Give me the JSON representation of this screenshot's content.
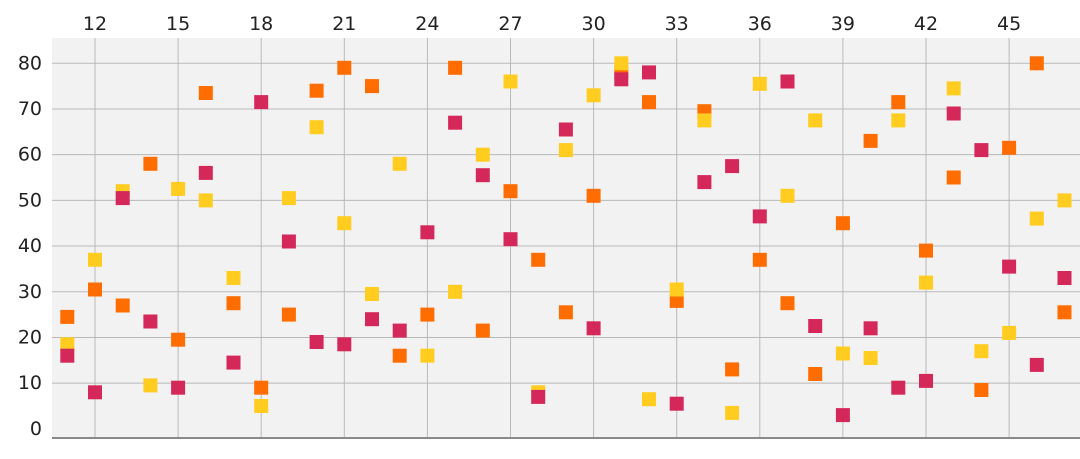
{
  "colors": {
    "plot_background": "#f2f2f2",
    "grid": "#b9b9b9",
    "axis": "#8a8a8a",
    "tick_text": "#222222"
  },
  "chart_data": {
    "type": "scatter",
    "title": "",
    "xlabel": "",
    "ylabel": "",
    "x_axis_position": "top",
    "y_axis_position": "left",
    "grid": true,
    "xlim": [
      10,
      47.5
    ],
    "ylim": [
      -2,
      88
    ],
    "xticks": [
      12,
      15,
      18,
      21,
      24,
      27,
      30,
      33,
      36,
      39,
      42,
      45
    ],
    "yticks": [
      0,
      10,
      20,
      30,
      40,
      50,
      60,
      70,
      80
    ],
    "marker": "square",
    "series": [
      {
        "color": "#ff6d00",
        "points": [
          [
            11,
            24.5
          ],
          [
            12,
            30.5
          ],
          [
            13,
            27
          ],
          [
            14,
            58
          ],
          [
            15,
            19.5
          ],
          [
            16,
            73.5
          ],
          [
            17,
            27.5
          ],
          [
            18,
            9
          ],
          [
            19,
            25
          ],
          [
            20,
            74
          ],
          [
            21,
            79
          ],
          [
            22,
            75
          ],
          [
            23,
            16
          ],
          [
            24,
            25
          ],
          [
            25,
            79
          ],
          [
            26,
            21.5
          ],
          [
            27,
            52
          ],
          [
            28,
            37
          ],
          [
            29,
            25.5
          ],
          [
            30,
            51
          ],
          [
            31,
            78
          ],
          [
            32,
            71.5
          ],
          [
            33,
            28
          ],
          [
            34,
            69.5
          ],
          [
            35,
            13
          ],
          [
            36,
            37
          ],
          [
            37,
            27.5
          ],
          [
            38,
            12
          ],
          [
            39,
            45
          ],
          [
            40,
            63
          ],
          [
            41,
            71.5
          ],
          [
            42,
            39
          ],
          [
            43,
            55
          ],
          [
            44,
            8.5
          ],
          [
            45,
            61.5
          ],
          [
            46,
            80
          ],
          [
            47,
            25.5
          ]
        ]
      },
      {
        "color": "#ffcc1f",
        "points": [
          [
            11,
            18.5
          ],
          [
            12,
            37
          ],
          [
            13,
            52
          ],
          [
            14,
            9.5
          ],
          [
            15,
            52.5
          ],
          [
            16,
            50
          ],
          [
            17,
            33
          ],
          [
            18,
            5
          ],
          [
            19,
            50.5
          ],
          [
            20,
            66
          ],
          [
            21,
            45
          ],
          [
            22,
            29.5
          ],
          [
            23,
            58
          ],
          [
            24,
            16
          ],
          [
            25,
            30
          ],
          [
            26,
            60
          ],
          [
            27,
            76
          ],
          [
            28,
            8
          ],
          [
            29,
            61
          ],
          [
            30,
            73
          ],
          [
            31,
            80
          ],
          [
            32,
            6.5
          ],
          [
            33,
            30.5
          ],
          [
            34,
            67.5
          ],
          [
            35,
            3.5
          ],
          [
            36,
            75.5
          ],
          [
            37,
            51
          ],
          [
            38,
            67.5
          ],
          [
            39,
            16.5
          ],
          [
            40,
            15.5
          ],
          [
            41,
            67.5
          ],
          [
            42,
            32
          ],
          [
            43,
            74.5
          ],
          [
            44,
            17
          ],
          [
            45,
            21
          ],
          [
            46,
            46
          ],
          [
            47,
            50
          ]
        ]
      },
      {
        "color": "#d4285b",
        "points": [
          [
            11,
            16
          ],
          [
            12,
            8
          ],
          [
            13,
            50.5
          ],
          [
            14,
            23.5
          ],
          [
            15,
            9
          ],
          [
            16,
            56
          ],
          [
            17,
            14.5
          ],
          [
            18,
            71.5
          ],
          [
            19,
            41
          ],
          [
            20,
            19
          ],
          [
            21,
            18.5
          ],
          [
            22,
            24
          ],
          [
            23,
            21.5
          ],
          [
            24,
            43
          ],
          [
            25,
            67
          ],
          [
            26,
            55.5
          ],
          [
            27,
            41.5
          ],
          [
            28,
            7
          ],
          [
            29,
            65.5
          ],
          [
            30,
            22
          ],
          [
            31,
            76.5
          ],
          [
            32,
            78
          ],
          [
            33,
            5.5
          ],
          [
            34,
            54
          ],
          [
            35,
            57.5
          ],
          [
            36,
            46.5
          ],
          [
            37,
            76
          ],
          [
            38,
            22.5
          ],
          [
            39,
            3
          ],
          [
            40,
            22
          ],
          [
            41,
            9
          ],
          [
            42,
            10.5
          ],
          [
            43,
            69
          ],
          [
            44,
            61
          ],
          [
            45,
            35.5
          ],
          [
            46,
            14
          ],
          [
            47,
            33
          ]
        ]
      }
    ]
  }
}
